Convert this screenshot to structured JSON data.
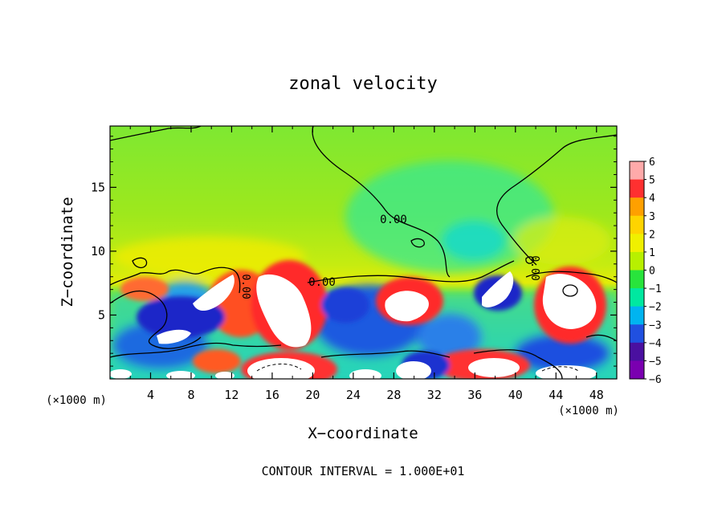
{
  "chart_data": {
    "type": "heatmap",
    "title": "zonal velocity",
    "xlabel": "X−coordinate",
    "ylabel": "Z−coordinate",
    "x_unit_label": "(×1000 m)",
    "footer": "CONTOUR INTERVAL = 1.000E+01",
    "xlim": [
      0,
      50
    ],
    "ylim": [
      0,
      19.8
    ],
    "x_ticks": [
      4,
      8,
      12,
      16,
      20,
      24,
      28,
      32,
      36,
      40,
      44,
      48
    ],
    "y_ticks": [
      5,
      10,
      15
    ],
    "contour_labels": [
      "0.00",
      "0.00",
      "0.00",
      "0.00"
    ],
    "colorbar": {
      "ticks": [
        "6",
        "5",
        "4",
        "3",
        "2",
        "1",
        "0",
        "−1",
        "−2",
        "−3",
        "−4",
        "−5",
        "−6"
      ],
      "colors": [
        "#ff3030",
        "#ff6a00",
        "#ffa000",
        "#ffd400",
        "#f0f000",
        "#b8f000",
        "#80ec28",
        "#28e43c",
        "#00e8a0",
        "#00b4f0",
        "#2050e0",
        "#1c20c8",
        "#4a10a0"
      ],
      "top_color": "#ffaaaa",
      "bottom_color": "#7a00b0"
    }
  }
}
